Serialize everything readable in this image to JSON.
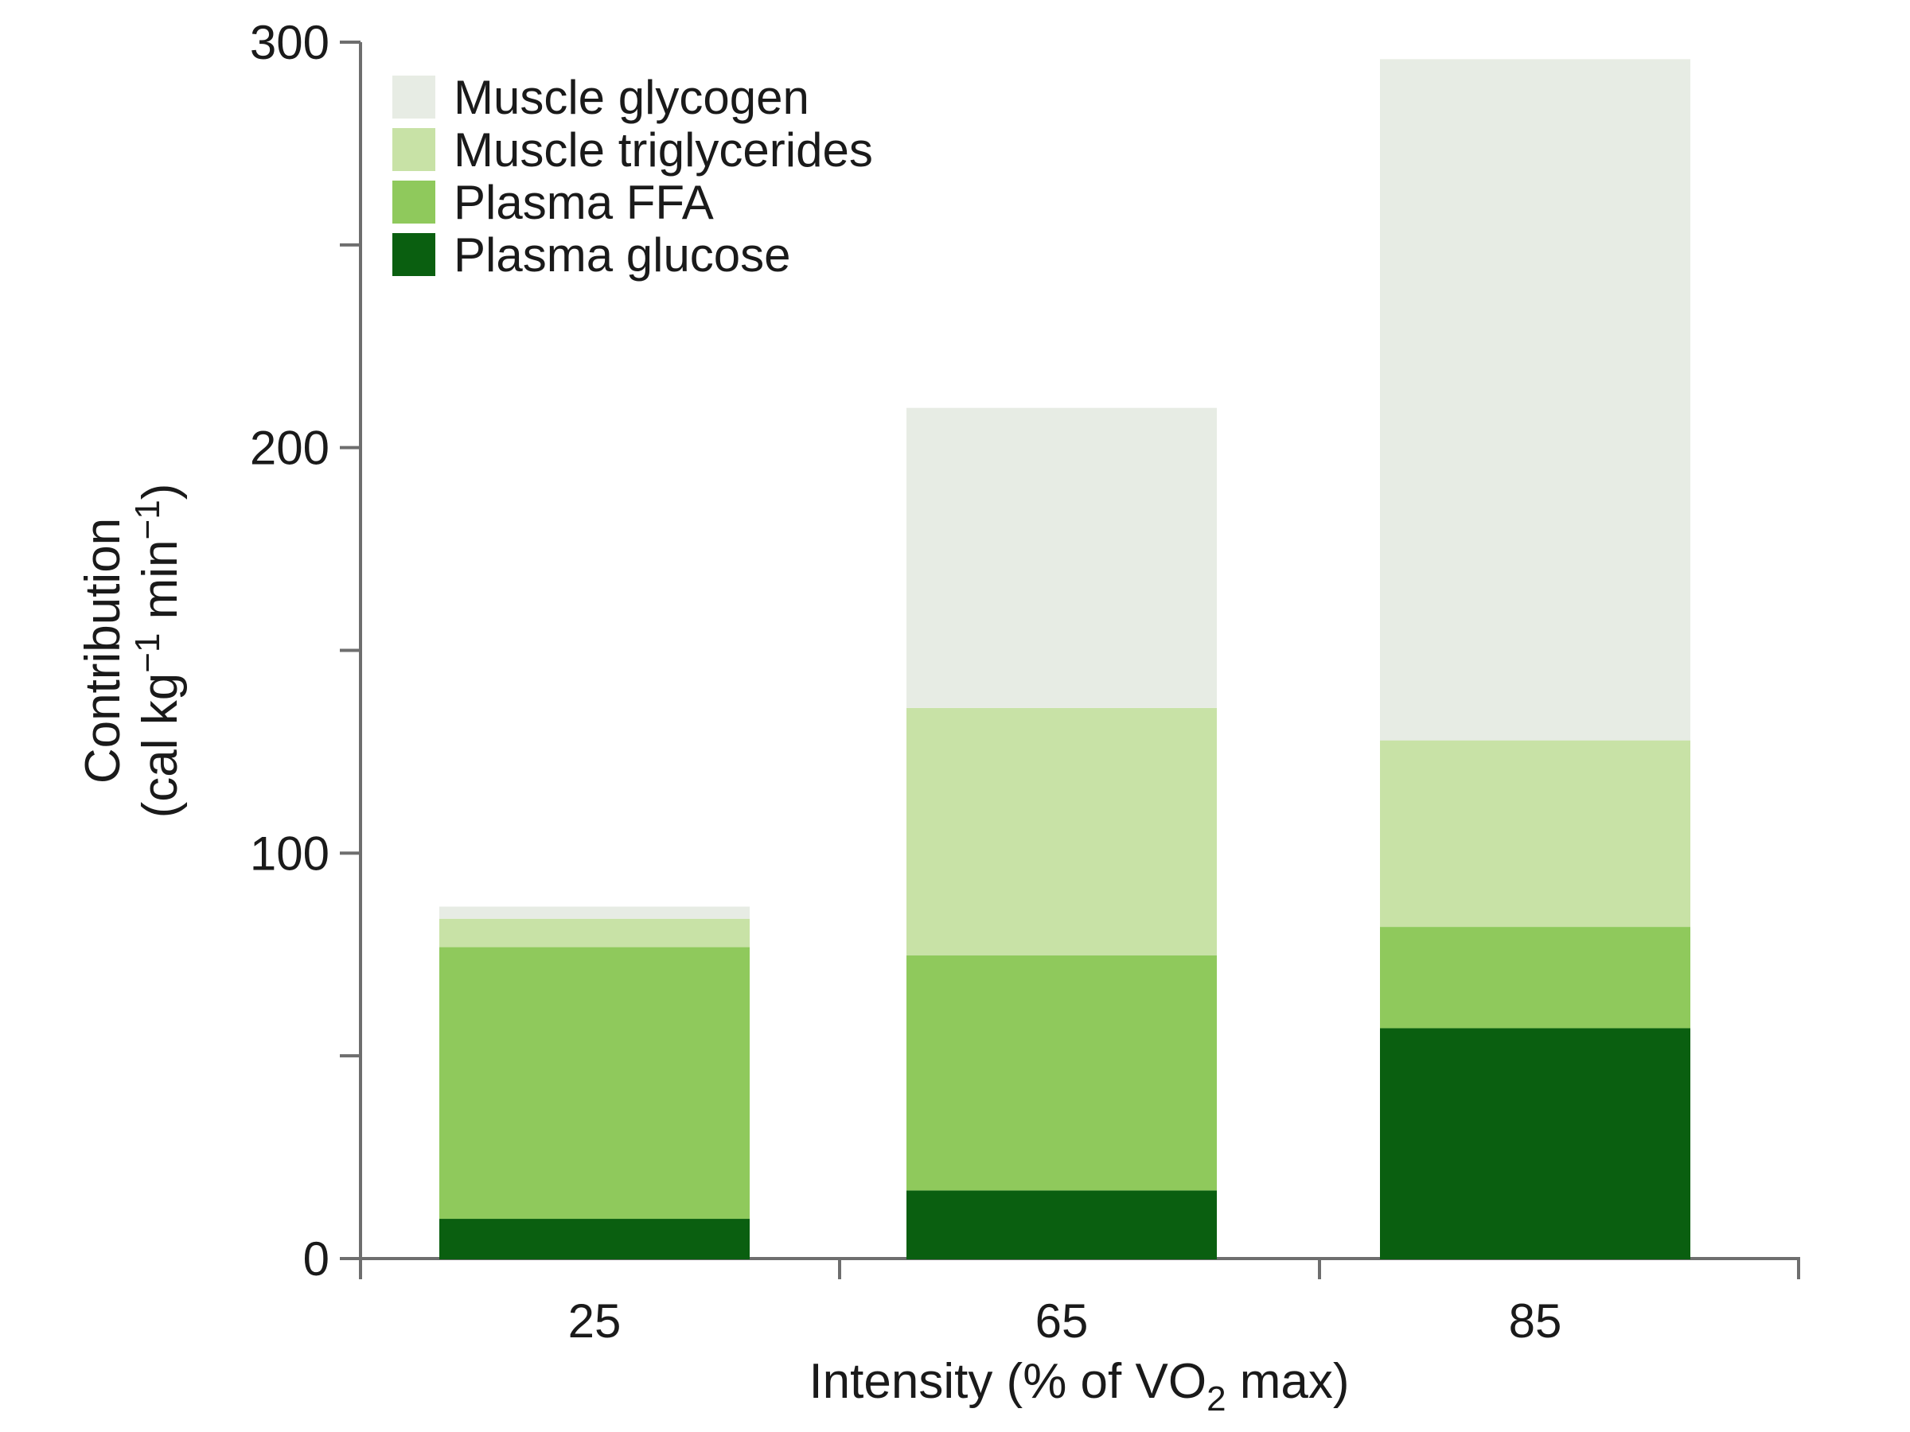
{
  "figure": {
    "background": "#ffffff",
    "text_color": "#1a1a1a",
    "axis_color": "#6e6e6e"
  },
  "legend": {
    "position": "upper-left-inside",
    "items": [
      {
        "label": "Muscle glycogen",
        "color": "#e7ece4"
      },
      {
        "label": "Muscle triglycerides",
        "color": "#c8e2a6"
      },
      {
        "label": "Plasma FFA",
        "color": "#8fc95c"
      },
      {
        "label": "Plasma glucose",
        "color": "#0a5f10"
      }
    ]
  },
  "chart_data": {
    "type": "bar",
    "stacked": true,
    "title": "",
    "categories": [
      "25",
      "65",
      "85"
    ],
    "series": [
      {
        "name": "Plasma glucose",
        "color": "#0a5f10",
        "values": [
          10,
          17,
          57
        ]
      },
      {
        "name": "Plasma FFA",
        "color": "#8fc95c",
        "values": [
          67,
          58,
          25
        ]
      },
      {
        "name": "Muscle triglycerides",
        "color": "#c8e2a6",
        "values": [
          7,
          61,
          46
        ]
      },
      {
        "name": "Muscle glycogen",
        "color": "#e7ece4",
        "values": [
          3,
          74,
          168
        ]
      }
    ],
    "totals": [
      87,
      210,
      296
    ],
    "xlabel_text": "Intensity (% of VO2 max)",
    "xlabel_parts": [
      {
        "t": "Intensity (% of VO"
      },
      {
        "t": "2",
        "sub": true
      },
      {
        "t": " max)"
      }
    ],
    "ylabel_text": "Contribution (cal kg−1 min−1)",
    "ylabel_line1": "Contribution",
    "ylabel_line2_parts": [
      {
        "t": "(cal kg"
      },
      {
        "t": "−1",
        "sup": true
      },
      {
        "t": " min"
      },
      {
        "t": "−1",
        "sup": true
      },
      {
        "t": ")"
      }
    ],
    "ylim": [
      0,
      300
    ],
    "ytick_major_step": 100,
    "ytick_minor_step": 50,
    "ytick_labels": [
      "0",
      "100",
      "200",
      "300"
    ],
    "grid": false,
    "legend_position": "upper-left-inside"
  }
}
